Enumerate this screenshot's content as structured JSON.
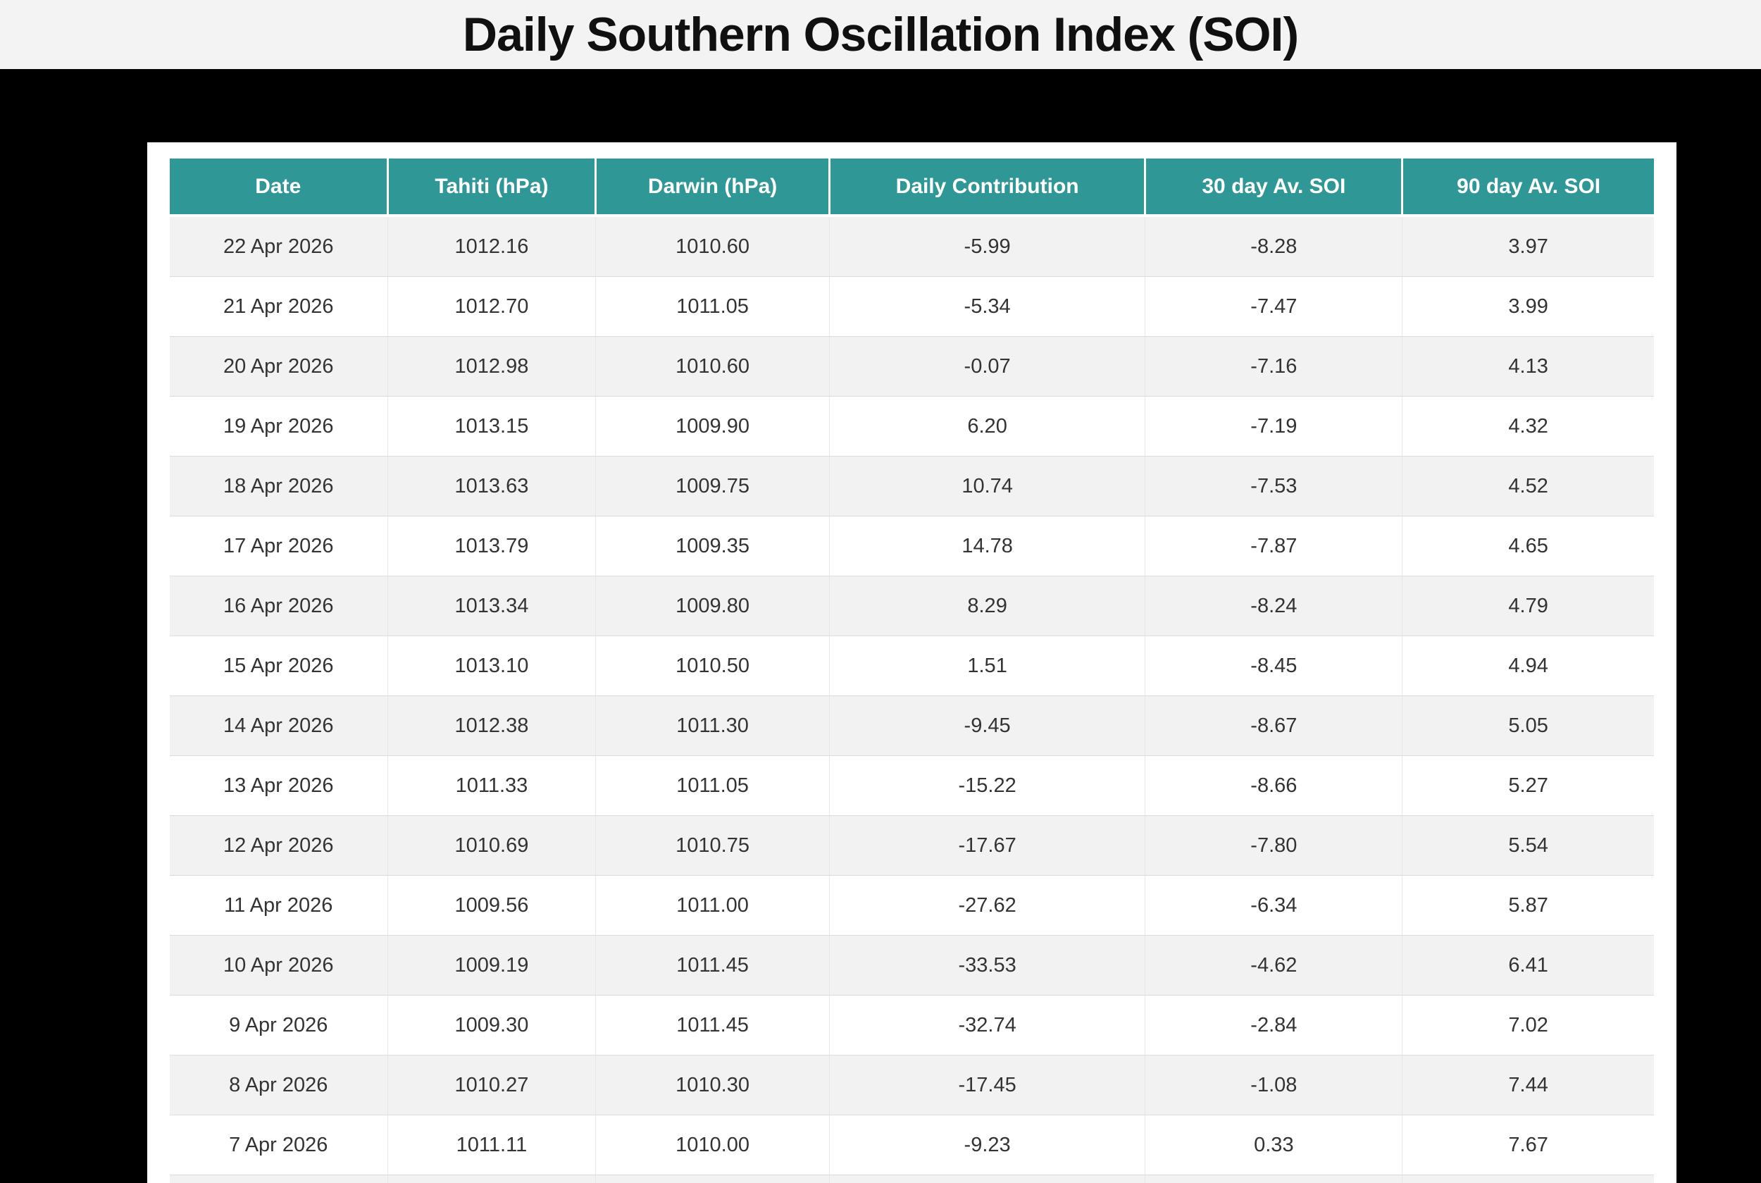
{
  "header": {
    "title": "Daily Southern Oscillation Index (SOI)"
  },
  "table": {
    "columns": [
      "Date",
      "Tahiti (hPa)",
      "Darwin (hPa)",
      "Daily Contribution",
      "30 day Av. SOI",
      "90 day Av. SOI"
    ],
    "rows": [
      [
        "22 Apr 2026",
        "1012.16",
        "1010.60",
        "-5.99",
        "-8.28",
        "3.97"
      ],
      [
        "21 Apr 2026",
        "1012.70",
        "1011.05",
        "-5.34",
        "-7.47",
        "3.99"
      ],
      [
        "20 Apr 2026",
        "1012.98",
        "1010.60",
        "-0.07",
        "-7.16",
        "4.13"
      ],
      [
        "19 Apr 2026",
        "1013.15",
        "1009.90",
        "6.20",
        "-7.19",
        "4.32"
      ],
      [
        "18 Apr 2026",
        "1013.63",
        "1009.75",
        "10.74",
        "-7.53",
        "4.52"
      ],
      [
        "17 Apr 2026",
        "1013.79",
        "1009.35",
        "14.78",
        "-7.87",
        "4.65"
      ],
      [
        "16 Apr 2026",
        "1013.34",
        "1009.80",
        "8.29",
        "-8.24",
        "4.79"
      ],
      [
        "15 Apr 2026",
        "1013.10",
        "1010.50",
        "1.51",
        "-8.45",
        "4.94"
      ],
      [
        "14 Apr 2026",
        "1012.38",
        "1011.30",
        "-9.45",
        "-8.67",
        "5.05"
      ],
      [
        "13 Apr 2026",
        "1011.33",
        "1011.05",
        "-15.22",
        "-8.66",
        "5.27"
      ],
      [
        "12 Apr 2026",
        "1010.69",
        "1010.75",
        "-17.67",
        "-7.80",
        "5.54"
      ],
      [
        "11 Apr 2026",
        "1009.56",
        "1011.00",
        "-27.62",
        "-6.34",
        "5.87"
      ],
      [
        "10 Apr 2026",
        "1009.19",
        "1011.45",
        "-33.53",
        "-4.62",
        "6.41"
      ],
      [
        "9 Apr 2026",
        "1009.30",
        "1011.45",
        "-32.74",
        "-2.84",
        "7.02"
      ],
      [
        "8 Apr 2026",
        "1010.27",
        "1010.30",
        "-17.45",
        "-1.08",
        "7.44"
      ],
      [
        "7 Apr 2026",
        "1011.11",
        "1010.00",
        "-9.23",
        "0.33",
        "7.67"
      ]
    ],
    "partial_next_row_visible": true
  },
  "colors": {
    "header_teal": "#2f9796",
    "row_alt_gray": "#f2f2f2",
    "page_background": "#000000",
    "titlebar_background": "#f3f3f3"
  }
}
